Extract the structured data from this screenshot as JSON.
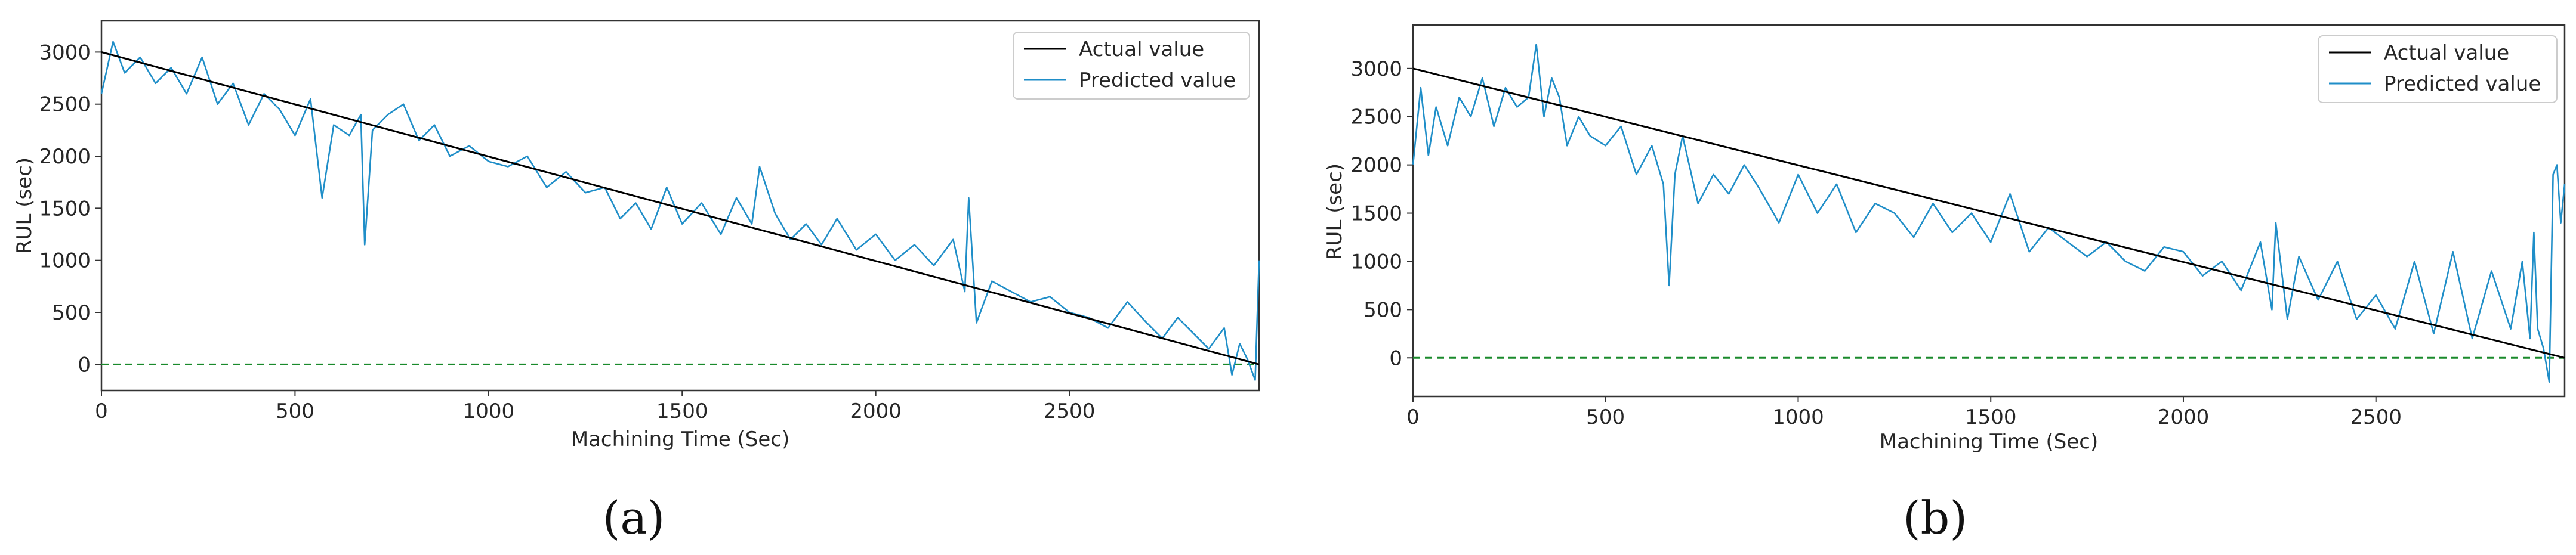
{
  "colors": {
    "actual": "#000000",
    "predicted": "#1f8ec8",
    "baseline": "#1a8a2c",
    "axis": "#333333"
  },
  "chart_data": [
    {
      "type": "line",
      "caption": "(a)",
      "xlabel": "Machining Time (Sec)",
      "ylabel": "RUL (sec)",
      "xlim": [
        0,
        2990
      ],
      "ylim": [
        -250,
        3300
      ],
      "xticks": [
        0,
        500,
        1000,
        1500,
        2000,
        2500
      ],
      "yticks": [
        0,
        500,
        1000,
        1500,
        2000,
        2500,
        3000
      ],
      "grid": false,
      "legend": "top-right",
      "baseline": {
        "y": 0,
        "style": "dashed"
      },
      "series": [
        {
          "name": "Actual value",
          "x": [
            0,
            2990
          ],
          "values": [
            3000,
            0
          ]
        },
        {
          "name": "Predicted value",
          "x": [
            0,
            30,
            60,
            100,
            140,
            180,
            220,
            260,
            300,
            340,
            380,
            420,
            460,
            500,
            540,
            570,
            600,
            640,
            670,
            680,
            700,
            740,
            780,
            820,
            860,
            900,
            950,
            1000,
            1050,
            1100,
            1150,
            1200,
            1250,
            1300,
            1340,
            1380,
            1420,
            1460,
            1500,
            1550,
            1600,
            1640,
            1680,
            1700,
            1740,
            1780,
            1820,
            1860,
            1900,
            1950,
            2000,
            2050,
            2100,
            2150,
            2200,
            2230,
            2240,
            2260,
            2300,
            2350,
            2400,
            2450,
            2500,
            2550,
            2600,
            2650,
            2700,
            2740,
            2780,
            2820,
            2860,
            2900,
            2920,
            2940,
            2960,
            2980,
            2990
          ],
          "values": [
            2600,
            3100,
            2800,
            2950,
            2700,
            2850,
            2600,
            2950,
            2500,
            2700,
            2300,
            2600,
            2450,
            2200,
            2550,
            1600,
            2300,
            2200,
            2400,
            1150,
            2250,
            2400,
            2500,
            2150,
            2300,
            2000,
            2100,
            1950,
            1900,
            2000,
            1700,
            1850,
            1650,
            1700,
            1400,
            1550,
            1300,
            1700,
            1350,
            1550,
            1250,
            1600,
            1350,
            1900,
            1450,
            1200,
            1350,
            1150,
            1400,
            1100,
            1250,
            1000,
            1150,
            950,
            1200,
            700,
            1600,
            400,
            800,
            700,
            600,
            650,
            500,
            450,
            350,
            600,
            400,
            250,
            450,
            300,
            150,
            350,
            -100,
            200,
            50,
            -150,
            1000
          ]
        }
      ]
    },
    {
      "type": "line",
      "caption": "(b)",
      "xlabel": "Machining Time (Sec)",
      "ylabel": "RUL (sec)",
      "xlim": [
        0,
        2990
      ],
      "ylim": [
        -400,
        3450
      ],
      "xticks": [
        0,
        500,
        1000,
        1500,
        2000,
        2500
      ],
      "yticks": [
        0,
        500,
        1000,
        1500,
        2000,
        2500,
        3000
      ],
      "grid": false,
      "legend": "top-right",
      "baseline": {
        "y": 0,
        "style": "dashed"
      },
      "series": [
        {
          "name": "Actual value",
          "x": [
            0,
            2990
          ],
          "values": [
            3000,
            0
          ]
        },
        {
          "name": "Predicted value",
          "x": [
            0,
            20,
            40,
            60,
            90,
            120,
            150,
            180,
            210,
            240,
            270,
            300,
            320,
            340,
            360,
            380,
            400,
            430,
            460,
            500,
            540,
            580,
            620,
            650,
            665,
            680,
            700,
            740,
            780,
            820,
            860,
            900,
            950,
            1000,
            1050,
            1100,
            1150,
            1200,
            1250,
            1300,
            1350,
            1400,
            1450,
            1500,
            1550,
            1600,
            1650,
            1700,
            1750,
            1800,
            1850,
            1900,
            1950,
            2000,
            2050,
            2100,
            2150,
            2200,
            2230,
            2240,
            2270,
            2300,
            2350,
            2400,
            2450,
            2500,
            2550,
            2600,
            2650,
            2700,
            2750,
            2800,
            2850,
            2880,
            2900,
            2910,
            2920,
            2935,
            2950,
            2960,
            2970,
            2980,
            2990
          ],
          "values": [
            2000,
            2800,
            2100,
            2600,
            2200,
            2700,
            2500,
            2900,
            2400,
            2800,
            2600,
            2700,
            3250,
            2500,
            2900,
            2700,
            2200,
            2500,
            2300,
            2200,
            2400,
            1900,
            2200,
            1800,
            750,
            1900,
            2300,
            1600,
            1900,
            1700,
            2000,
            1750,
            1400,
            1900,
            1500,
            1800,
            1300,
            1600,
            1500,
            1250,
            1600,
            1300,
            1500,
            1200,
            1700,
            1100,
            1350,
            1200,
            1050,
            1200,
            1000,
            900,
            1150,
            1100,
            850,
            1000,
            700,
            1200,
            500,
            1400,
            400,
            1050,
            600,
            1000,
            400,
            650,
            300,
            1000,
            250,
            1100,
            200,
            900,
            300,
            1000,
            200,
            1300,
            300,
            100,
            -250,
            1900,
            2000,
            1400,
            1800
          ]
        }
      ]
    }
  ]
}
